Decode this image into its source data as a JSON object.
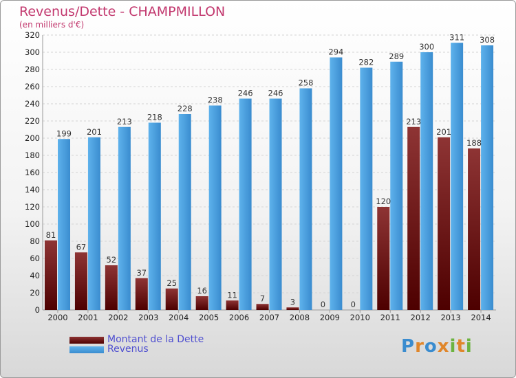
{
  "header": {
    "title": "Revenus/Dette - CHAMPMILLON",
    "subtitle": "(en milliers d'€)"
  },
  "legend": {
    "debt_label": "Montant de la Dette",
    "revenue_label": "Revenus"
  },
  "logo": {
    "text": "Proxiti"
  },
  "colors": {
    "debt": "#7a1f1f",
    "revenue": "#4a9ede",
    "title": "#c2386e",
    "legend_text": "#4f4fd0"
  },
  "chart_data": {
    "type": "bar",
    "title": "Revenus/Dette - CHAMPMILLON",
    "subtitle": "(en milliers d'€)",
    "categories": [
      "2000",
      "2001",
      "2002",
      "2003",
      "2004",
      "2005",
      "2006",
      "2007",
      "2008",
      "2009",
      "2010",
      "2011",
      "2012",
      "2013",
      "2014"
    ],
    "series": [
      {
        "name": "Montant de la Dette",
        "values": [
          81,
          67,
          52,
          37,
          25,
          16,
          11,
          7,
          3,
          0,
          0,
          120,
          213,
          201,
          188
        ]
      },
      {
        "name": "Revenus",
        "values": [
          199,
          201,
          213,
          218,
          228,
          238,
          246,
          246,
          258,
          294,
          282,
          289,
          300,
          311,
          308
        ]
      }
    ],
    "ylim": [
      0,
      320
    ],
    "yticks": [
      0,
      20,
      40,
      60,
      80,
      100,
      120,
      140,
      160,
      180,
      200,
      220,
      240,
      260,
      280,
      300,
      320
    ],
    "grid": true,
    "legend_position": "bottom-left"
  }
}
